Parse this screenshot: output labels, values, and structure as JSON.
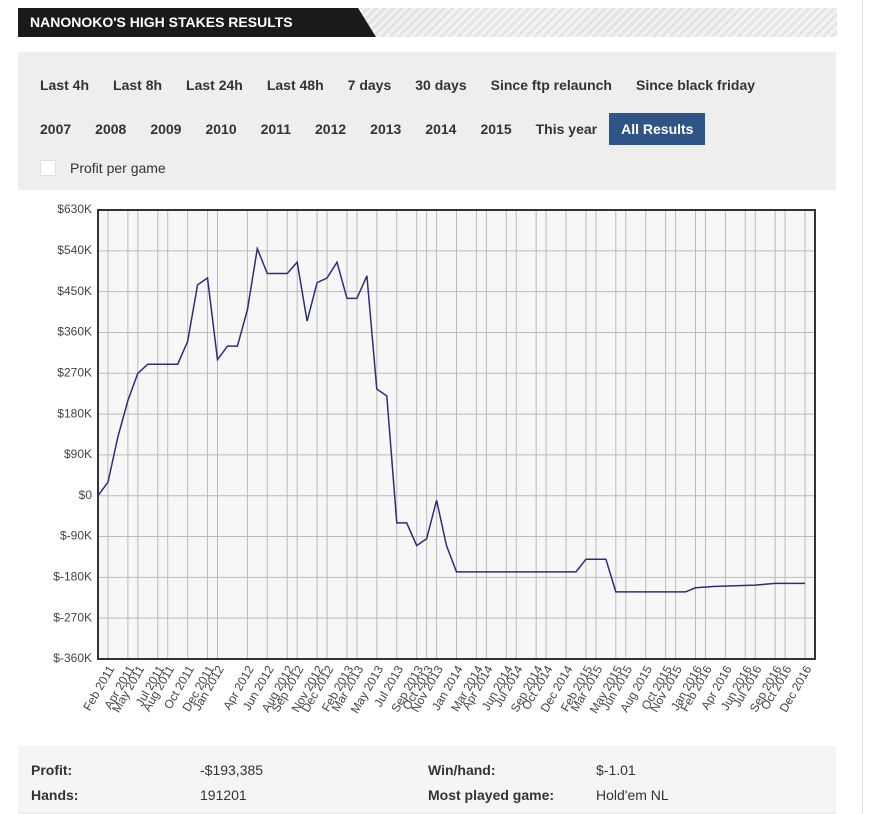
{
  "header": {
    "title": "NANONOKO'S HIGH STAKES RESULTS"
  },
  "filters": {
    "row1": [
      "Last 4h",
      "Last 8h",
      "Last 24h",
      "Last 48h",
      "7 days",
      "30 days",
      "Since ftp relaunch",
      "Since black friday"
    ],
    "row2": [
      "2007",
      "2008",
      "2009",
      "2010",
      "2011",
      "2012",
      "2013",
      "2014",
      "2015",
      "This year",
      "All Results"
    ],
    "active": "All Results",
    "checkbox": "Profit per game"
  },
  "chart_data": {
    "type": "line",
    "xlim": [
      "Jan 2011",
      "Jan 2017"
    ],
    "xticks": [
      "Feb 2011",
      "Apr 2011",
      "May 2011",
      "Jul 2011",
      "Aug 2011",
      "Oct 2011",
      "Dec 2011",
      "Jan 2012",
      "Apr 2012",
      "Jun 2012",
      "Aug 2012",
      "Sep 2012",
      "Nov 2012",
      "Dec 2012",
      "Feb 2013",
      "Mar 2013",
      "May 2013",
      "Jul 2013",
      "Sep 2013",
      "Oct 2013",
      "Nov 2013",
      "Jan 2014",
      "Mar 2014",
      "Apr 2014",
      "Jun 2014",
      "Jul 2014",
      "Sep 2014",
      "Oct 2014",
      "Dec 2014",
      "Feb 2015",
      "Mar 2015",
      "May 2015",
      "Jun 2015",
      "Aug 2015",
      "Oct 2015",
      "Nov 2015",
      "Jan 2016",
      "Feb 2016",
      "Apr 2016",
      "Jun 2016",
      "Jul 2016",
      "Sep 2016",
      "Oct 2016",
      "Dec 2016"
    ],
    "ylim": [
      -360000,
      630000
    ],
    "yticks": [
      {
        "value": -360000,
        "label": "$-360K"
      },
      {
        "value": -270000,
        "label": "$-270K"
      },
      {
        "value": -180000,
        "label": "$-180K"
      },
      {
        "value": -90000,
        "label": "$-90K"
      },
      {
        "value": 0,
        "label": "$0"
      },
      {
        "value": 90000,
        "label": "$90K"
      },
      {
        "value": 180000,
        "label": "$180K"
      },
      {
        "value": 270000,
        "label": "$270K"
      },
      {
        "value": 360000,
        "label": "$360K"
      },
      {
        "value": 450000,
        "label": "$450K"
      },
      {
        "value": 540000,
        "label": "$540K"
      },
      {
        "value": 630000,
        "label": "$630K"
      }
    ],
    "grid": true,
    "x": [
      "Jan 2011",
      "Feb 2011",
      "Mar 2011",
      "Apr 2011",
      "May 2011",
      "Jun 2011",
      "Sep 2011",
      "Oct 2011",
      "Nov 2011",
      "Dec 2011",
      "Jan 2012",
      "Feb 2012",
      "Mar 2012",
      "Apr 2012",
      "May 2012",
      "Jun 2012",
      "Jul 2012",
      "Aug 2012",
      "Sep 2012",
      "Oct 2012",
      "Nov 2012",
      "Dec 2012",
      "Jan 2013",
      "Feb 2013",
      "Mar 2013",
      "Apr 2013",
      "May 2013",
      "Jun 2013",
      "Jul 2013",
      "Aug 2013",
      "Sep 2013",
      "Oct 2013",
      "Nov 2013",
      "Dec 2013",
      "Jan 2014",
      "Jan 2015",
      "Feb 2015",
      "Apr 2015",
      "May 2015",
      "Dec 2015",
      "Jan 2016",
      "Mar 2016",
      "Jul 2016",
      "Sep 2016",
      "Dec 2016"
    ],
    "series": [
      {
        "name": "Profit",
        "color": "#2b2f7a",
        "values": [
          0,
          30000,
          130000,
          210000,
          270000,
          290000,
          290000,
          340000,
          465000,
          480000,
          300000,
          330000,
          330000,
          410000,
          545000,
          490000,
          490000,
          490000,
          515000,
          385000,
          470000,
          480000,
          515000,
          435000,
          435000,
          485000,
          235000,
          220000,
          -60000,
          -60000,
          -110000,
          -95000,
          -10000,
          -110000,
          -168000,
          -168000,
          -140000,
          -140000,
          -212000,
          -212000,
          -203000,
          -200000,
          -197000,
          -193385,
          -193385
        ]
      }
    ]
  },
  "stats": {
    "profit_label": "Profit:",
    "profit": "-$193,385",
    "winhand_label": "Win/hand:",
    "winhand": "$-1.01",
    "hands_label": "Hands:",
    "hands": "191201",
    "game_label": "Most played game:",
    "game": "Hold'em NL"
  }
}
